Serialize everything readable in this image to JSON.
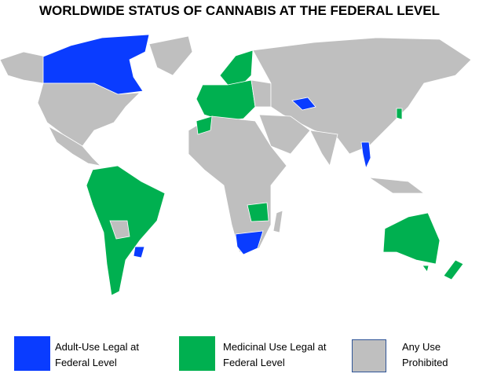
{
  "title": "WORLDWIDE STATUS OF CANNABIS AT THE FEDERAL LEVEL",
  "legend": [
    {
      "label": "Adult-Use Legal at Federal Level",
      "color": "#0a3cff"
    },
    {
      "label": "Medicinal Use Legal at Federal Level",
      "color": "#00b050"
    },
    {
      "label": "Any Use Prohibited",
      "color": "#bfbfbf"
    }
  ]
}
